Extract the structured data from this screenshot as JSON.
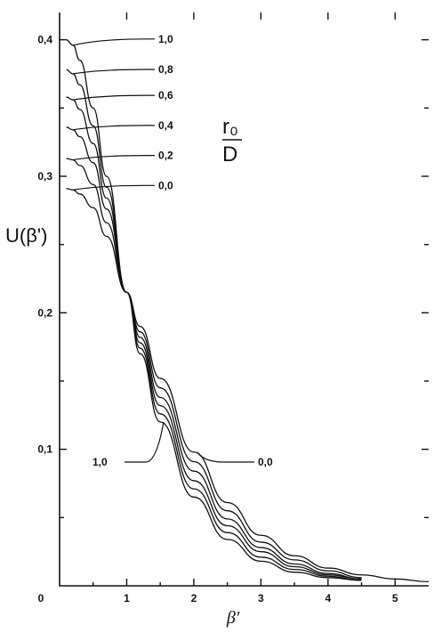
{
  "chart_data": {
    "type": "line",
    "xlabel": "β'",
    "ylabel": "U(β')",
    "xlim": [
      0,
      5.5
    ],
    "ylim": [
      0,
      0.42
    ],
    "x_ticks": [
      0,
      1,
      2,
      3,
      4,
      5
    ],
    "x_tick_labels": [
      "0",
      "1",
      "2",
      "3",
      "4",
      "5"
    ],
    "y_ticks": [
      0.1,
      0.2,
      0.3,
      0.4
    ],
    "y_tick_labels": [
      "0,1",
      "0,2",
      "0,3",
      "0,4"
    ],
    "origin_label": "0",
    "legend_title_num": "r₀",
    "legend_title_den": "D",
    "series": [
      {
        "name": "1,0",
        "label": "1,0",
        "x": [
          0.1,
          0.2,
          0.3,
          0.5,
          0.7,
          1.0,
          1.2,
          1.5,
          2.0,
          2.5,
          3.0,
          3.5,
          4.0,
          4.5
        ],
        "y": [
          0.4,
          0.396,
          0.385,
          0.35,
          0.3,
          0.215,
          0.17,
          0.12,
          0.065,
          0.034,
          0.018,
          0.01,
          0.006,
          0.004
        ]
      },
      {
        "name": "0,8",
        "label": "0,8",
        "x": [
          0.1,
          0.2,
          0.3,
          0.5,
          0.7,
          1.0,
          1.2,
          1.5,
          2.0,
          2.5,
          3.0,
          3.5,
          4.0,
          4.5
        ],
        "y": [
          0.378,
          0.375,
          0.367,
          0.337,
          0.292,
          0.215,
          0.174,
          0.126,
          0.071,
          0.039,
          0.021,
          0.012,
          0.007,
          0.004
        ]
      },
      {
        "name": "0,6",
        "label": "0,6",
        "x": [
          0.1,
          0.2,
          0.3,
          0.5,
          0.7,
          1.0,
          1.2,
          1.5,
          2.0,
          2.5,
          3.0,
          3.5,
          4.0,
          4.5
        ],
        "y": [
          0.358,
          0.356,
          0.349,
          0.324,
          0.284,
          0.215,
          0.178,
          0.132,
          0.077,
          0.044,
          0.025,
          0.014,
          0.008,
          0.005
        ]
      },
      {
        "name": "0,4",
        "label": "0,4",
        "x": [
          0.1,
          0.2,
          0.3,
          0.5,
          0.7,
          1.0,
          1.2,
          1.5,
          2.0,
          2.5,
          3.0,
          3.5,
          4.0,
          4.5
        ],
        "y": [
          0.336,
          0.334,
          0.329,
          0.31,
          0.276,
          0.215,
          0.182,
          0.138,
          0.084,
          0.049,
          0.028,
          0.016,
          0.009,
          0.005
        ]
      },
      {
        "name": "0,2",
        "label": "0,2",
        "x": [
          0.1,
          0.2,
          0.3,
          0.5,
          0.7,
          1.0,
          1.2,
          1.5,
          2.0,
          2.5,
          3.0,
          3.5,
          4.0,
          4.5
        ],
        "y": [
          0.313,
          0.312,
          0.308,
          0.294,
          0.266,
          0.215,
          0.186,
          0.145,
          0.091,
          0.055,
          0.032,
          0.019,
          0.011,
          0.006
        ]
      },
      {
        "name": "0,0",
        "label": "0,0",
        "x": [
          0.1,
          0.2,
          0.3,
          0.5,
          0.7,
          1.0,
          1.2,
          1.5,
          2.0,
          2.5,
          3.0,
          3.5,
          4.0,
          4.5,
          5.0,
          5.5
        ],
        "y": [
          0.291,
          0.29,
          0.287,
          0.277,
          0.256,
          0.215,
          0.19,
          0.152,
          0.098,
          0.061,
          0.037,
          0.022,
          0.013,
          0.008,
          0.005,
          0.003
        ]
      }
    ],
    "annotations": [
      {
        "text": "1,0",
        "points_to": "1,0",
        "at": [
          1.55,
          0.12
        ]
      },
      {
        "text": "0,0",
        "points_to": "0,0",
        "at": [
          2.05,
          0.098
        ]
      }
    ]
  }
}
